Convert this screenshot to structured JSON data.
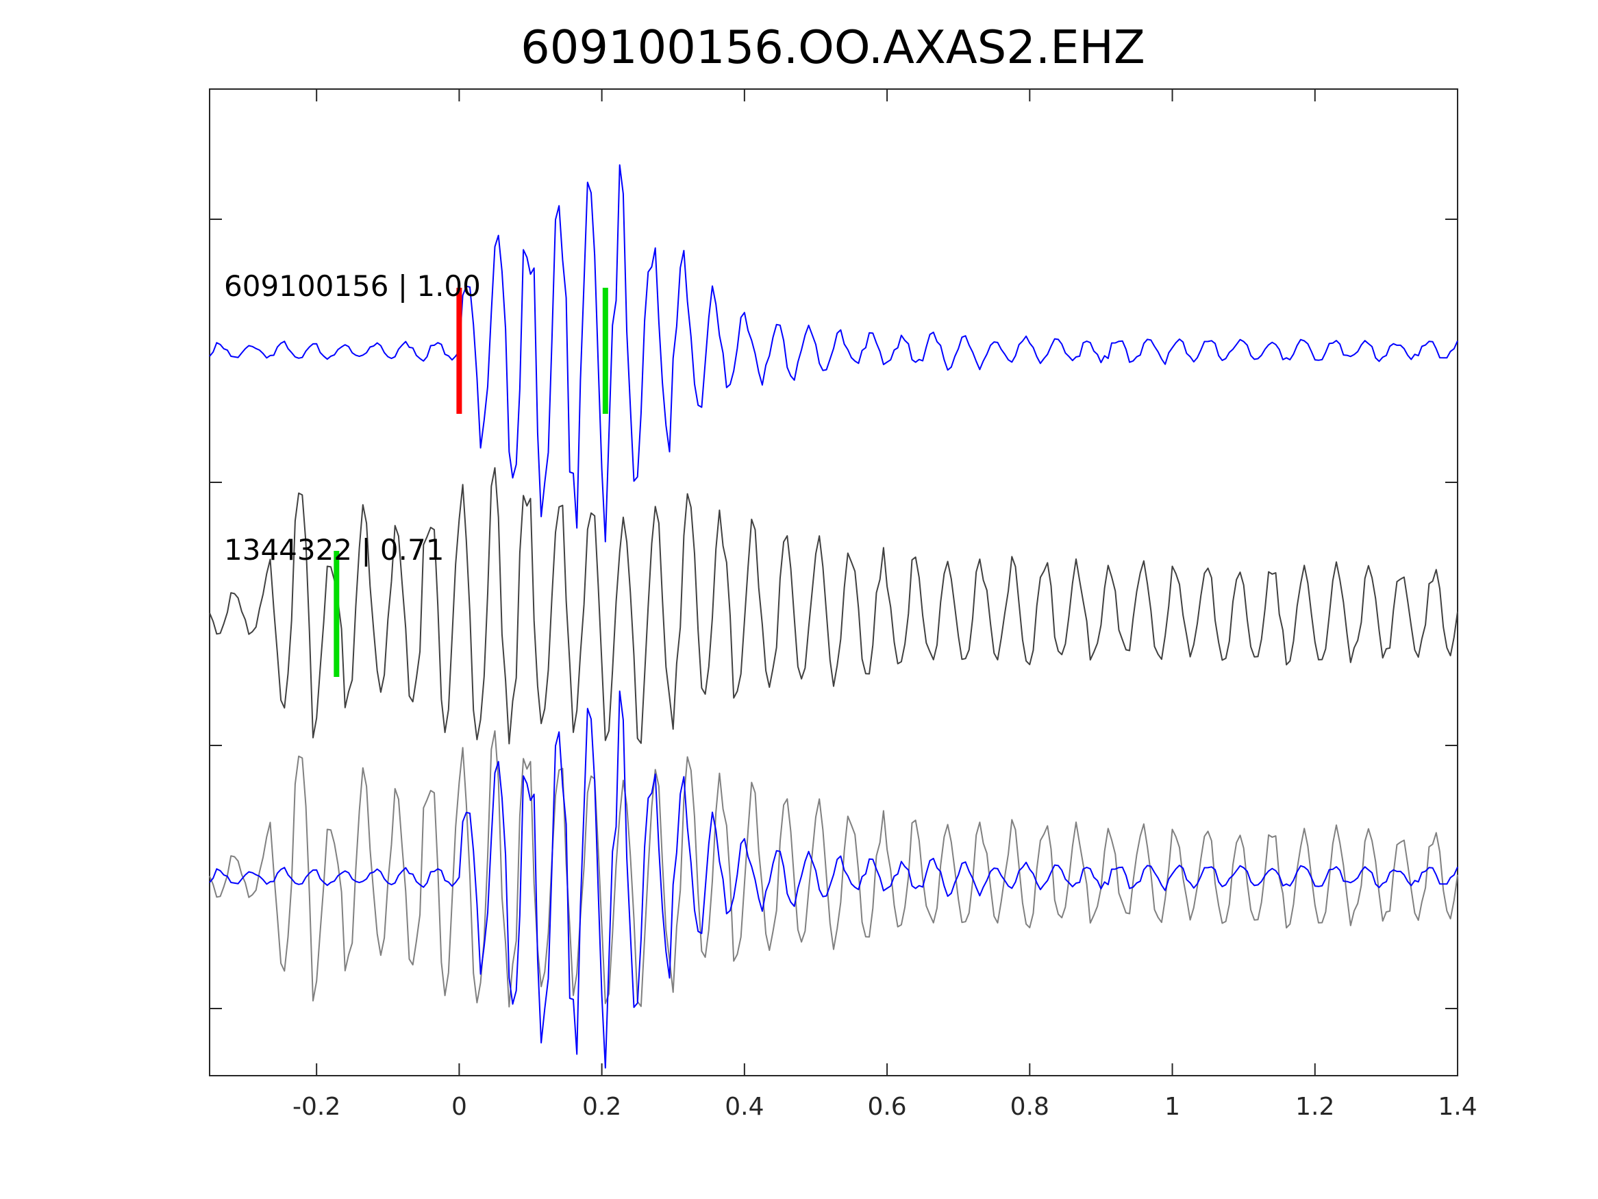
{
  "chart_data": {
    "type": "line",
    "title": "609100156.OO.AXAS2.EHZ",
    "xlabel": "",
    "ylabel": "",
    "xlim": [
      -0.35,
      1.4
    ],
    "x_ticks": [
      -0.2,
      0,
      0.2,
      0.4,
      0.6,
      0.8,
      1,
      1.2,
      1.4
    ],
    "x_tick_labels": [
      "-0.2",
      "0",
      "0.2",
      "0.4",
      "0.6",
      "0.8",
      "1",
      "1.2",
      "1.4"
    ],
    "y_ticks_labeled": false,
    "grid": false,
    "colors": {
      "master_trace": "#0000ff",
      "match_trace": "#404040",
      "overlay_match_trace": "#808080",
      "p_pick": "#ff0000",
      "s_pick": "#00dd00",
      "axes": "#262626"
    },
    "panels": [
      {
        "label": "609100156 | 1.00",
        "trace": "master",
        "picks": [
          {
            "type": "P",
            "time": 0.0
          },
          {
            "type": "S",
            "time": 0.205
          }
        ]
      },
      {
        "label": "1344322 | 0.71",
        "trace": "match",
        "picks": [
          {
            "type": "S",
            "time": -0.172
          }
        ]
      },
      {
        "label": "",
        "trace": "overlay",
        "picks": []
      }
    ],
    "sample_interval_s": 0.005
  }
}
